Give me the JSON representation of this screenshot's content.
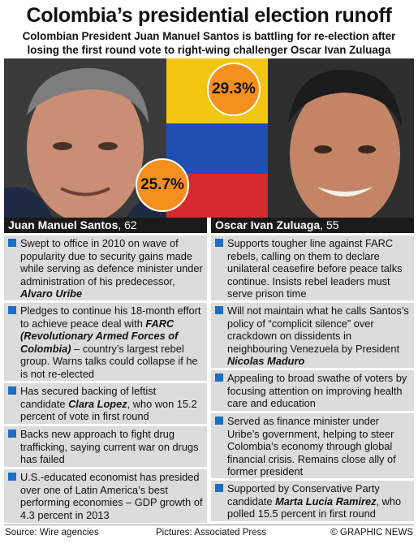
{
  "header": {
    "title": "Colombia’s presidential election runoff",
    "subtitle_line1": "Colombian President Juan Manuel Santos is battling for re-election after",
    "subtitle_line2": "losing the first round vote to right-wing challenger Oscar Ivan Zuluaga"
  },
  "photo": {
    "santos_pct": "25.7%",
    "zuluaga_pct": "29.3%",
    "colors": {
      "yellow": "#f3c613",
      "blue": "#1f4fb0",
      "red": "#d42a2e",
      "badge": "#f5901e"
    }
  },
  "santos": {
    "name": "Juan Manuel Santos",
    "age": ", 62",
    "items": [
      {
        "pre": "Swept to office in 2010 on wave of popularity due to security gains made while serving as defence minister under administration of his predecessor, ",
        "bold": "Alvaro Uribe",
        "post": ""
      },
      {
        "pre": "Pledges to continue his 18-month effort to achieve peace deal with ",
        "bold": "FARC (Revolutionary Armed Forces of Colombia)",
        "post": " – country’s largest rebel group. Warns talks could collapse if he is not re-elected"
      },
      {
        "pre": "Has secured backing of leftist candidate ",
        "bold": "Clara Lopez",
        "post": ", who won 15.2 percent of vote in first round"
      },
      {
        "pre": "Backs new approach to fight drug trafficking, saying current war on drugs has failed",
        "bold": "",
        "post": ""
      },
      {
        "pre": "U.S.-educated economist has presided over one of Latin America’s best performing economies – GDP growth of 4.3 percent in 2013",
        "bold": "",
        "post": ""
      }
    ]
  },
  "zuluaga": {
    "name": "Oscar Ivan Zuluaga",
    "age": ", 55",
    "items": [
      {
        "pre": "Supports tougher line against FARC rebels, calling on them to declare unilateral ceasefire before peace talks continue. Insists rebel leaders must serve prison time",
        "bold": "",
        "post": ""
      },
      {
        "pre": "Will not maintain what he calls Santos’s policy of “complicit silence” over crackdown on dissidents in neighbouring Venezuela by President ",
        "bold": "Nicolas Maduro",
        "post": ""
      },
      {
        "pre": "Appealing to broad swathe of voters by focusing attention on improving health care and education",
        "bold": "",
        "post": ""
      },
      {
        "pre": "Served as finance minister under Uribe’s government, helping to steer Colombia’s economy through global financial crisis. Remains close ally of former president",
        "bold": "",
        "post": ""
      },
      {
        "pre": "Supported by Conservative Party candidate ",
        "bold": "Marta Lucia Ramirez",
        "post": ", who polled 15.5 percent in first round"
      }
    ]
  },
  "footer": {
    "source": "Source: Wire agencies",
    "pictures": "Pictures: Associated Press",
    "credit": "© GRAPHIC NEWS"
  }
}
